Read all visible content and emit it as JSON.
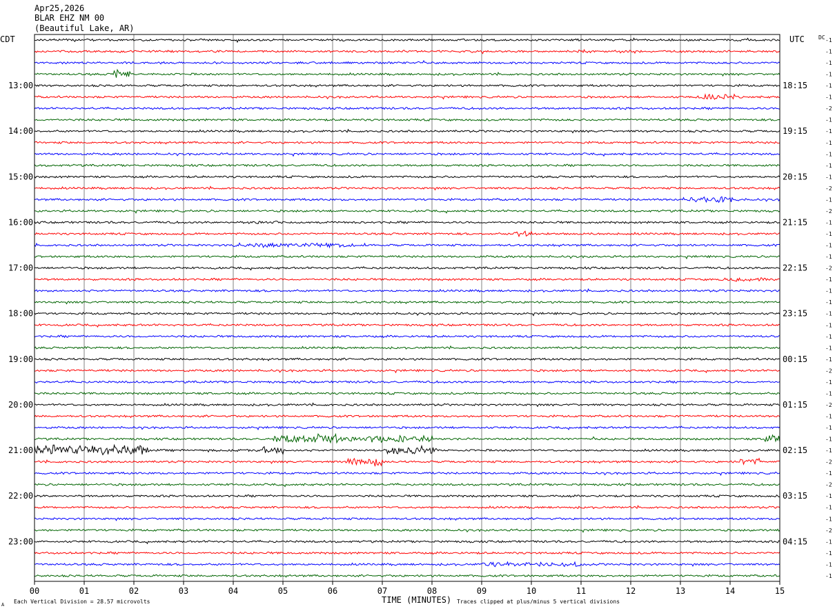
{
  "header": {
    "date": "Apr25,2026",
    "station": "BLAR EHZ NM 00",
    "location": "(Beautiful Lake, AR)"
  },
  "labels": {
    "left_zone": "CDT",
    "right_zone": "UTC",
    "dc_header": "DC",
    "x_axis_title": "TIME (MINUTES)",
    "scale_note": "Each Vertical Division =   28.57 microvolts",
    "clip_note": "Traces clipped at plus/minus 5 vertical divisions",
    "corner_mark": "A"
  },
  "colors": {
    "trace_cycle": [
      "#000000",
      "#ff0000",
      "#0000ff",
      "#006400"
    ],
    "grid": "#808080",
    "frame": "#000000"
  },
  "chart_data": {
    "type": "line",
    "title": "BLAR EHZ NM 00",
    "xlabel": "TIME (MINUTES)",
    "xlim": [
      0,
      15
    ],
    "x_tick_labels": [
      "00",
      "01",
      "02",
      "03",
      "04",
      "05",
      "06",
      "07",
      "08",
      "09",
      "10",
      "11",
      "12",
      "13",
      "14",
      "15"
    ],
    "left_hour_labels": [
      "13:00",
      "14:00",
      "15:00",
      "16:00",
      "17:00",
      "18:00",
      "19:00",
      "20:00",
      "21:00",
      "22:00",
      "23:00"
    ],
    "right_hour_labels": [
      "18:15",
      "19:15",
      "20:15",
      "21:15",
      "22:15",
      "23:15",
      "00:15",
      "01:15",
      "02:15",
      "03:15",
      "04:15"
    ],
    "hour_label_first_trace": 4,
    "traces_per_hour": 4,
    "trace_count": 48,
    "dc_offsets": [
      "-1",
      "-1",
      "-1",
      "-1",
      "-1",
      "-1",
      "-2",
      "-1",
      "-1",
      "-1",
      "-1",
      "-1",
      "-1",
      "-2",
      "-1",
      "-2",
      "-1",
      "-1",
      "-1",
      "-1",
      "-2",
      "-1",
      "-1",
      "-1",
      "-1",
      "-1",
      "-1",
      "-1",
      "-1",
      "-2",
      "-1",
      "-1",
      "-2",
      "-1",
      "-1",
      "-1",
      "-1",
      "-2",
      "-1",
      "-2",
      "-1",
      "-1",
      "-1",
      "-2",
      "-1",
      "-1",
      "-1",
      "-1"
    ],
    "trace_bursts": [
      {
        "trace": 1,
        "start": 10.9,
        "end": 11.2,
        "amp": 4
      },
      {
        "trace": 3,
        "start": 1.6,
        "end": 1.95,
        "amp": 6
      },
      {
        "trace": 5,
        "start": 13.3,
        "end": 14.1,
        "amp": 4
      },
      {
        "trace": 14,
        "start": 13.0,
        "end": 14.2,
        "amp": 4
      },
      {
        "trace": 16,
        "start": 4.3,
        "end": 4.9,
        "amp": 3
      },
      {
        "trace": 17,
        "start": 9.6,
        "end": 10.0,
        "amp": 4
      },
      {
        "trace": 18,
        "start": 4.0,
        "end": 6.5,
        "amp": 3
      },
      {
        "trace": 21,
        "start": 13.8,
        "end": 14.7,
        "amp": 3
      },
      {
        "trace": 35,
        "start": 4.8,
        "end": 8.0,
        "amp": 5
      },
      {
        "trace": 35,
        "start": 5.7,
        "end": 6.1,
        "amp": 8
      },
      {
        "trace": 35,
        "start": 14.7,
        "end": 15.0,
        "amp": 5
      },
      {
        "trace": 36,
        "start": 0.0,
        "end": 2.3,
        "amp": 7
      },
      {
        "trace": 36,
        "start": 4.6,
        "end": 5.0,
        "amp": 6
      },
      {
        "trace": 36,
        "start": 7.1,
        "end": 8.1,
        "amp": 6
      },
      {
        "trace": 37,
        "start": 6.3,
        "end": 7.0,
        "amp": 6
      },
      {
        "trace": 37,
        "start": 14.2,
        "end": 14.6,
        "amp": 6
      },
      {
        "trace": 46,
        "start": 9.0,
        "end": 11.0,
        "amp": 3
      }
    ]
  }
}
